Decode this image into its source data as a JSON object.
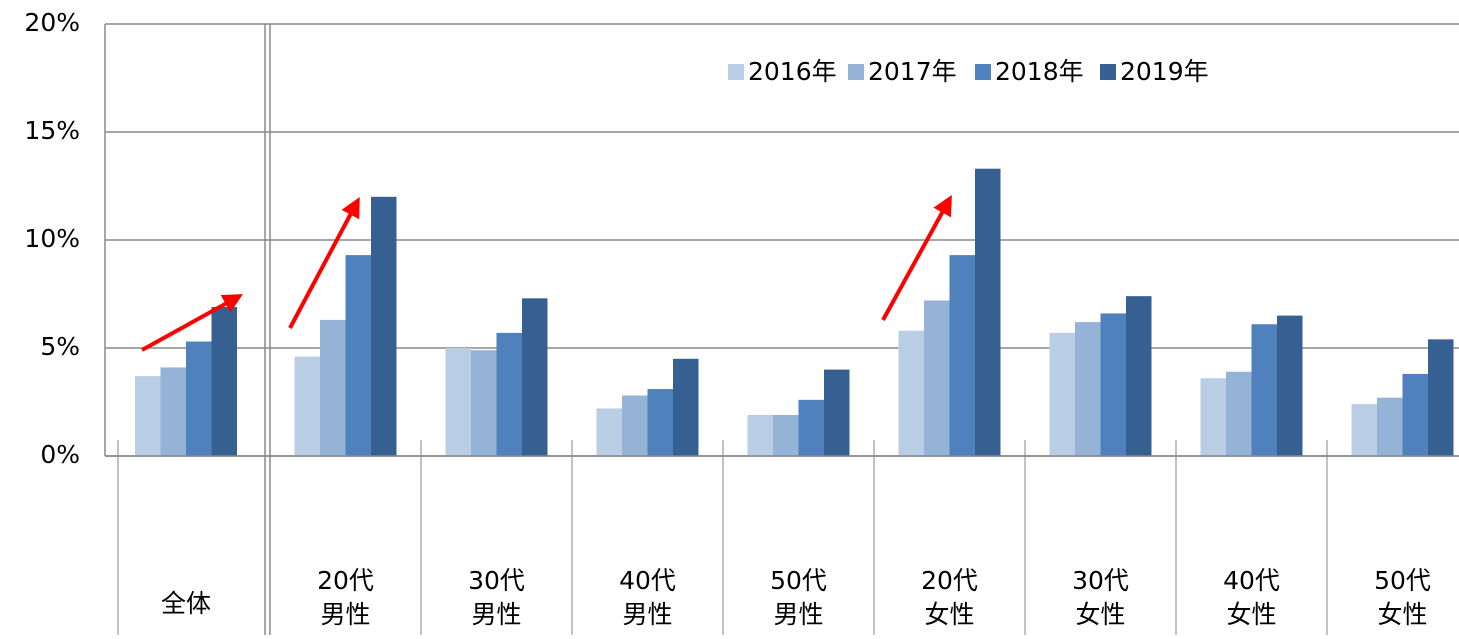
{
  "chart_data": {
    "type": "bar",
    "categories": [
      "全体",
      "20代\n男性",
      "30代\n男性",
      "40代\n男性",
      "50代\n男性",
      "20代\n女性",
      "30代\n女性",
      "40代\n女性",
      "50代\n女性"
    ],
    "series": [
      {
        "name": "2016年",
        "color": "#b9cde5",
        "values": [
          3.7,
          4.6,
          5.0,
          2.2,
          1.9,
          5.8,
          5.7,
          3.6,
          2.4
        ]
      },
      {
        "name": "2017年",
        "color": "#95b3d7",
        "values": [
          4.1,
          6.3,
          4.9,
          2.8,
          1.9,
          7.2,
          6.2,
          3.9,
          2.7
        ]
      },
      {
        "name": "2018年",
        "color": "#4f81bd",
        "values": [
          5.3,
          9.3,
          5.7,
          3.1,
          2.6,
          9.3,
          6.6,
          6.1,
          3.8
        ]
      },
      {
        "name": "2019年",
        "color": "#376092",
        "values": [
          6.9,
          12.0,
          7.3,
          4.5,
          4.0,
          13.3,
          7.4,
          6.5,
          5.4
        ]
      }
    ],
    "ylim": [
      0,
      20
    ],
    "yticks": [
      {
        "value": 0,
        "label": "0%"
      },
      {
        "value": 5,
        "label": "5%"
      },
      {
        "value": 10,
        "label": "10%"
      },
      {
        "value": 15,
        "label": "15%"
      },
      {
        "value": 20,
        "label": "20%"
      }
    ],
    "grid": true,
    "legend": "top-right"
  }
}
